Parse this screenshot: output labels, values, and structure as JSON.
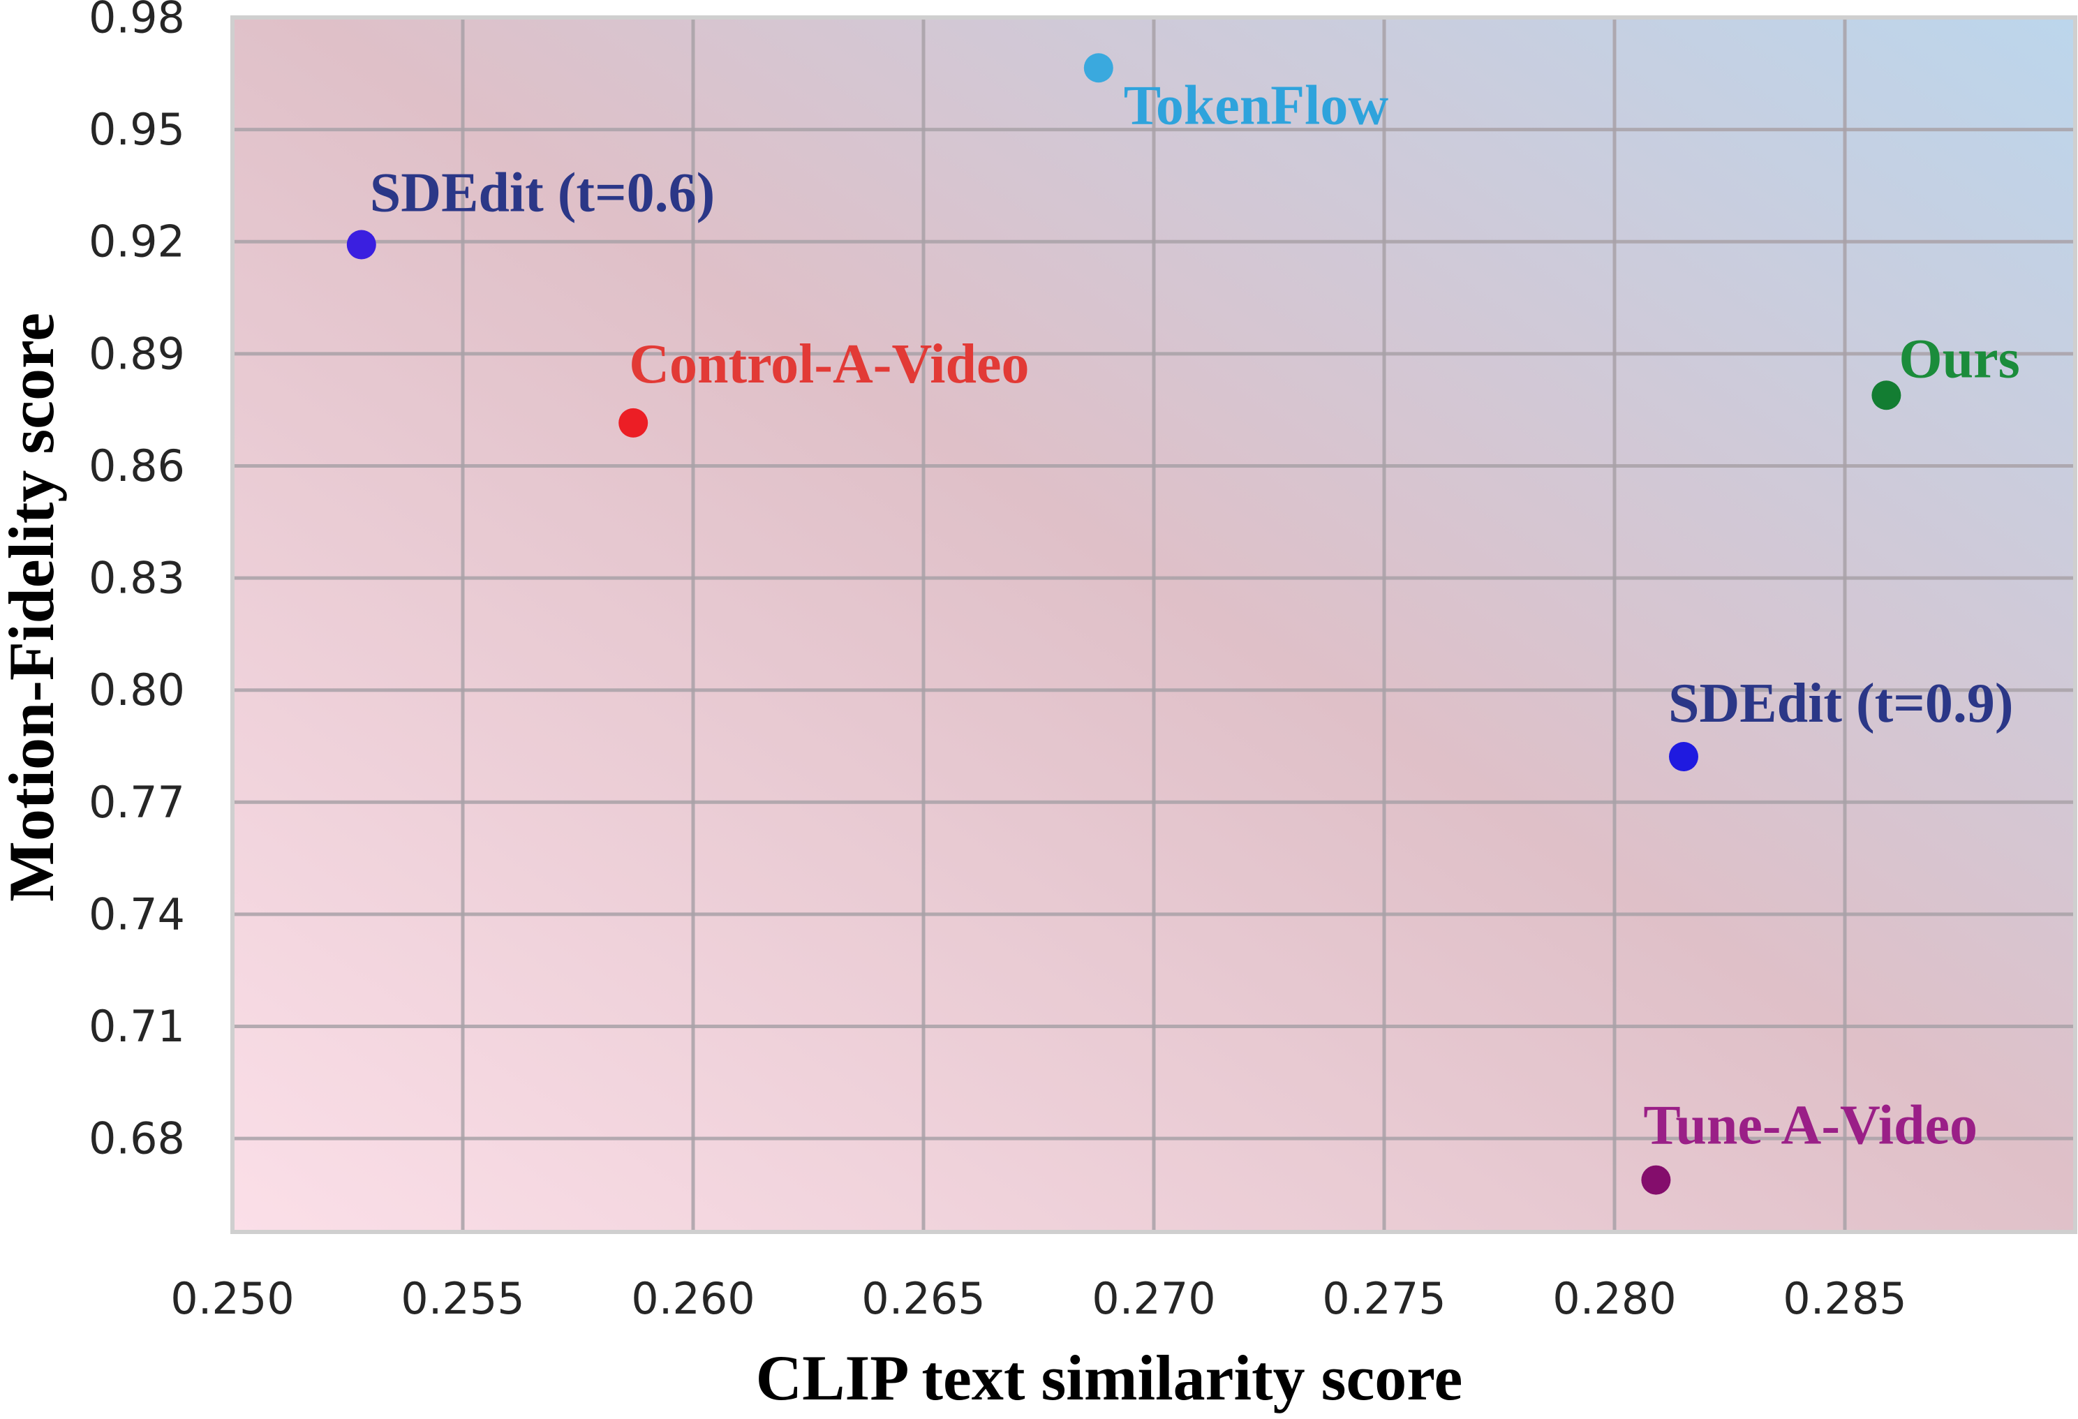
{
  "chart_data": {
    "type": "scatter",
    "title": "",
    "xlabel": "CLIP text similarity score",
    "ylabel": "Motion-Fidelity score",
    "xlim": [
      0.25,
      0.29
    ],
    "ylim": [
      0.655,
      0.98
    ],
    "xticks": [
      0.25,
      0.255,
      0.26,
      0.265,
      0.27,
      0.275,
      0.28,
      0.285
    ],
    "xtick_labels": [
      "0.250",
      "0.255",
      "0.260",
      "0.265",
      "0.270",
      "0.275",
      "0.280",
      "0.285"
    ],
    "yticks": [
      0.68,
      0.71,
      0.74,
      0.77,
      0.8,
      0.83,
      0.86,
      0.89,
      0.92,
      0.95,
      0.98
    ],
    "ytick_labels": [
      "0.68",
      "0.71",
      "0.74",
      "0.77",
      "0.80",
      "0.83",
      "0.86",
      "0.89",
      "0.92",
      "0.95",
      "0.98"
    ],
    "grid": true,
    "background": {
      "gradient_colors": [
        "#fbdfe8",
        "#dfc0c8",
        "#bcd6ec"
      ]
    },
    "points": [
      {
        "label": "TokenFlow",
        "x": 0.2688,
        "y": 0.9665,
        "color": "#3aa9de",
        "label_color": "#2ea3dc"
      },
      {
        "label": "SDEdit (t=0.6)",
        "x": 0.2528,
        "y": 0.9192,
        "color": "#3a1fe0",
        "label_color": "#2b3787"
      },
      {
        "label": "Control-A-Video",
        "x": 0.2587,
        "y": 0.8715,
        "color": "#ec1e25",
        "label_color": "#e23a36"
      },
      {
        "label": "Ours",
        "x": 0.2859,
        "y": 0.8789,
        "color": "#137d32",
        "label_color": "#1b8c3b"
      },
      {
        "label": "SDEdit (t=0.9)",
        "x": 0.2815,
        "y": 0.7822,
        "color": "#1f1ae0",
        "label_color": "#2b3787"
      },
      {
        "label": "Tune-A-Video",
        "x": 0.2809,
        "y": 0.6689,
        "color": "#840d6c",
        "label_color": "#9a1f87"
      }
    ]
  }
}
